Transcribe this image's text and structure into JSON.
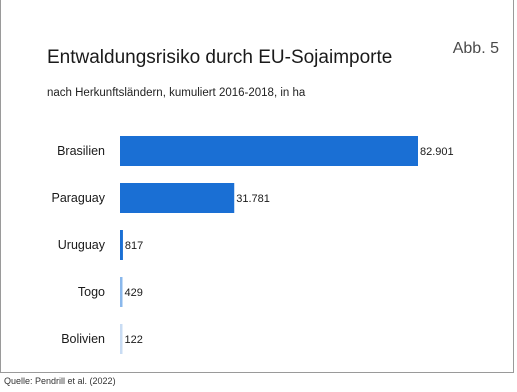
{
  "chart_data": {
    "type": "bar",
    "orientation": "horizontal",
    "title": "Entwaldungsrisiko durch EU-Sojaimporte",
    "subtitle": "nach Herkunftsländern, kumuliert 2016-2018, in ha",
    "figure_label": "Abb. 5",
    "source": "Quelle: Pendrill et al. (2022)",
    "categories": [
      "Brasilien",
      "Paraguay",
      "Uruguay",
      "Togo",
      "Bolivien"
    ],
    "values": [
      82901,
      31781,
      817,
      429,
      122
    ],
    "value_labels": [
      "82.901",
      "31.781",
      "817",
      "429",
      "122"
    ],
    "bar_colors": [
      "#1a6fd4",
      "#1a6fd4",
      "#1a6fd4",
      "#8ab8ec",
      "#c9dcf3"
    ],
    "xlim": [
      0,
      82901
    ],
    "grid": false,
    "legend": "none"
  }
}
